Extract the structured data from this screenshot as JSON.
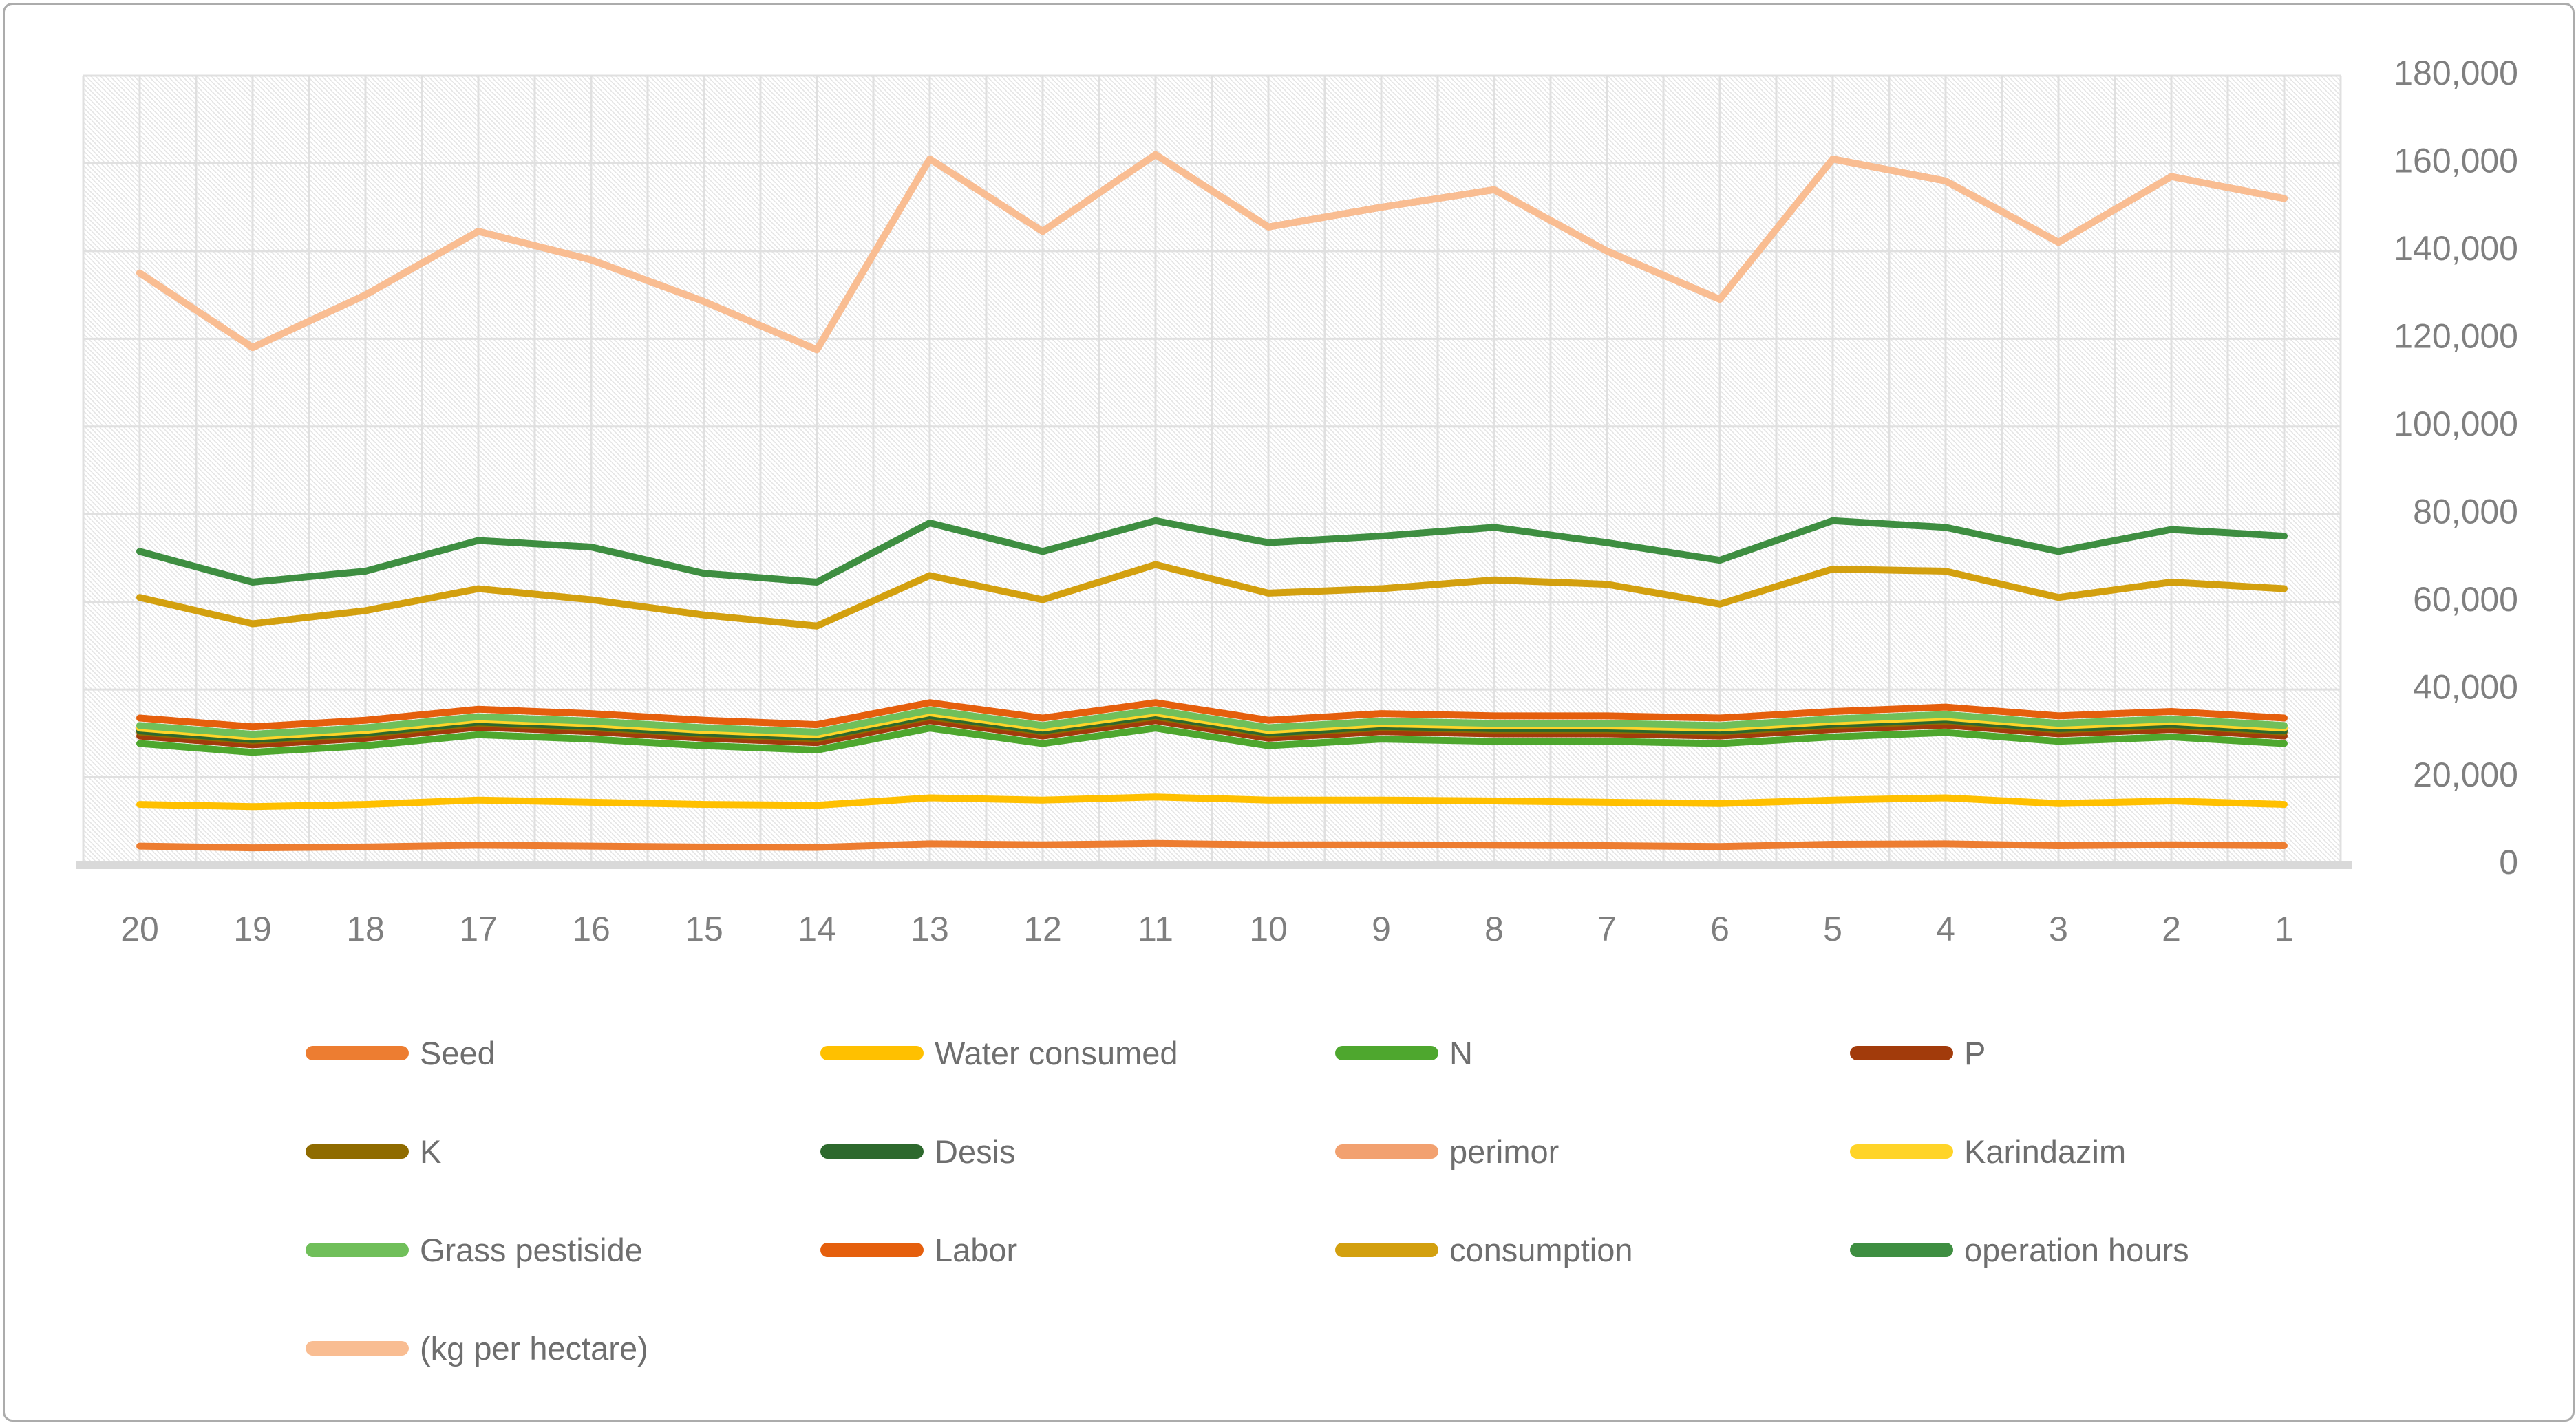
{
  "chart_data": {
    "type": "line",
    "title": "",
    "x_categories": [
      "20",
      "19",
      "18",
      "17",
      "16",
      "15",
      "14",
      "13",
      "12",
      "11",
      "10",
      "9",
      "8",
      "7",
      "6",
      "5",
      "4",
      "3",
      "2",
      "1"
    ],
    "y_axis": {
      "min": 0,
      "max": 180000,
      "tick_interval": 20000,
      "side": "right",
      "tick_labels_top_to_bottom": [
        "180,000",
        "160,000",
        "140,000",
        "120,000",
        "100,000",
        "80,000",
        "60,000",
        "40,000",
        "20,000",
        "0"
      ]
    },
    "grid": "on",
    "plot_background": "diagonal-hatch",
    "legend_position": "bottom",
    "colors": {
      "axis_text": "#7F7F7F",
      "legend_text": "#6E6E6E",
      "gridline": "#E0E0E0",
      "hatch": "#E4E4E4",
      "zero_axis_band": "#D9D9D9",
      "page_border": "#ACACAC"
    },
    "series": [
      {
        "name": "Seed",
        "color": "#ED7D31",
        "values": [
          4300,
          3900,
          4100,
          4500,
          4300,
          4100,
          4000,
          4800,
          4600,
          4900,
          4600,
          4600,
          4500,
          4400,
          4200,
          4700,
          4800,
          4400,
          4600,
          4400
        ]
      },
      {
        "name": "Water consumed",
        "color": "#FFC000",
        "values": [
          13800,
          13300,
          13800,
          14800,
          14300,
          13800,
          13600,
          15300,
          14800,
          15500,
          14800,
          14800,
          14600,
          14300,
          14000,
          14800,
          15300,
          14000,
          14600,
          13800
        ]
      },
      {
        "name": "N",
        "color": "#4EA72E",
        "values": [
          27700,
          25700,
          27200,
          29700,
          28700,
          27200,
          26200,
          31200,
          27700,
          31200,
          27200,
          28700,
          28200,
          28200,
          27700,
          29200,
          30200,
          28200,
          29200,
          27700
        ]
      },
      {
        "name": "P",
        "color": "#A23B0B",
        "values": [
          29400,
          27400,
          28900,
          31400,
          30400,
          28900,
          27900,
          32900,
          29400,
          32900,
          28900,
          30400,
          29900,
          29900,
          29400,
          30900,
          31900,
          29900,
          30900,
          29400
        ]
      },
      {
        "name": "K",
        "color": "#8F6B00",
        "values": [
          30300,
          28300,
          29800,
          32300,
          31300,
          29800,
          28800,
          33800,
          30300,
          33800,
          29800,
          31300,
          30800,
          30800,
          30300,
          31800,
          32800,
          30800,
          31800,
          30300
        ]
      },
      {
        "name": "Desis",
        "color": "#2D692D",
        "values": [
          30600,
          28600,
          30100,
          32600,
          31600,
          30100,
          29100,
          34100,
          30600,
          34100,
          30100,
          31600,
          31100,
          31100,
          30600,
          32100,
          33100,
          31100,
          32100,
          30600
        ]
      },
      {
        "name": "perimor",
        "color": "#F2A170",
        "values": [
          135000,
          118000,
          130000,
          144500,
          138000,
          128500,
          117500,
          161000,
          144500,
          162000,
          145500,
          150000,
          154000,
          140000,
          129000,
          161000,
          156000,
          142000,
          157000,
          152000
        ]
      },
      {
        "name": "Karindazim",
        "color": "#FFD428",
        "values": [
          31200,
          29200,
          30700,
          33200,
          32200,
          30700,
          29700,
          34700,
          31200,
          34700,
          30700,
          32200,
          31700,
          31700,
          31200,
          32700,
          33700,
          31700,
          32700,
          31200
        ]
      },
      {
        "name": "Grass pestiside",
        "color": "#70BF5A",
        "values": [
          31800,
          29800,
          31300,
          33800,
          32800,
          31300,
          30300,
          35300,
          31800,
          35300,
          31300,
          32800,
          32300,
          32300,
          31800,
          33300,
          34300,
          32300,
          33300,
          31800
        ]
      },
      {
        "name": "Labor",
        "color": "#E55F0D",
        "values": [
          33500,
          31500,
          33000,
          35500,
          34500,
          33000,
          32000,
          37000,
          33500,
          37000,
          33000,
          34500,
          34000,
          34000,
          33500,
          35000,
          36000,
          34000,
          35000,
          33500
        ]
      },
      {
        "name": "consumption",
        "color": "#D3A00F",
        "values": [
          61000,
          55000,
          58000,
          63000,
          60500,
          57000,
          54500,
          66000,
          60500,
          68500,
          62000,
          63000,
          65000,
          64000,
          59500,
          67500,
          67000,
          61000,
          64500,
          63000
        ]
      },
      {
        "name": "operation hours",
        "color": "#3E8E41",
        "values": [
          71500,
          64500,
          67000,
          74000,
          72500,
          66500,
          64500,
          78000,
          71500,
          78500,
          73500,
          75000,
          77000,
          73500,
          69500,
          78500,
          77000,
          71500,
          76500,
          75000
        ]
      },
      {
        "name": "(kg per hectare)",
        "color": "#F9BD92",
        "values": [
          135000,
          118000,
          130000,
          144500,
          138000,
          128500,
          117500,
          161000,
          144500,
          162000,
          145500,
          150000,
          154000,
          140000,
          129000,
          161000,
          156000,
          142000,
          157000,
          152000
        ]
      }
    ]
  }
}
